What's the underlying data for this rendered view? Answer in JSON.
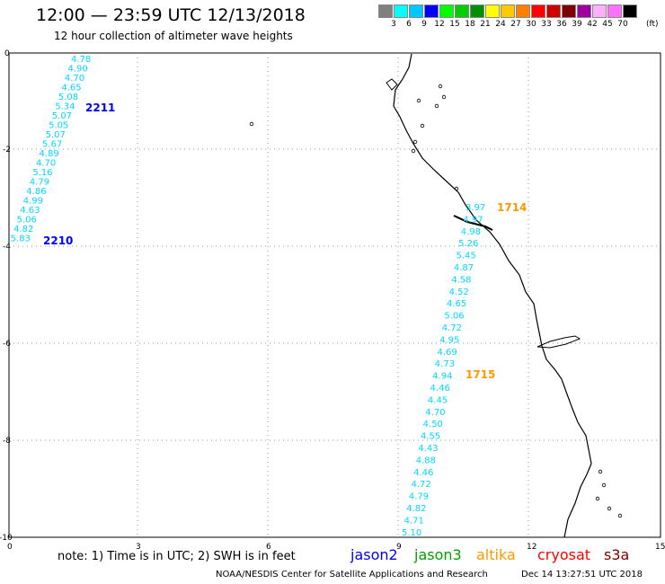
{
  "header": {
    "title": "12:00 — 23:59 UTC 12/13/2018",
    "subtitle": "12 hour collection of altimeter wave heights"
  },
  "color_scale": {
    "unit": "(ft)",
    "colors": [
      "#808080",
      "#00ffff",
      "#00c8ff",
      "#0000ff",
      "#00ff00",
      "#00d000",
      "#009000",
      "#ffff00",
      "#ffc800",
      "#ff8000",
      "#ff0000",
      "#d00000",
      "#800000",
      "#a000a0",
      "#ffb0ff",
      "#ff70ff",
      "#000000"
    ],
    "labels": [
      "3",
      "6",
      "9",
      "12",
      "15",
      "18",
      "21",
      "24",
      "27",
      "30",
      "33",
      "36",
      "39",
      "42",
      "45",
      "70"
    ]
  },
  "axes": {
    "x_ticks": [
      "0",
      "3",
      "6",
      "9",
      "12",
      "15"
    ],
    "y_ticks": [
      "0",
      "-2",
      "-4",
      "-6",
      "-8",
      "-10"
    ]
  },
  "tracks": [
    {
      "name": "2211",
      "satellite": "jason2",
      "color": "#00d8ff",
      "label_color": "#0000ff",
      "values": [
        "4.78",
        "4.90",
        "4.70",
        "4.65",
        "5.08",
        "5.34",
        "5.07",
        "5.05",
        "5.07",
        "5.67",
        "4.89",
        "4.70",
        "5.16",
        "4.79",
        "4.86",
        "4.99",
        "4.63",
        "5.06",
        "4.82",
        "5.83"
      ]
    },
    {
      "name": "2210",
      "satellite": "jason2",
      "label_color": "#0000ff"
    },
    {
      "name": "1714",
      "satellite": "altika",
      "color": "#00d8ff",
      "label_color": "#ff9900",
      "values": [
        "3.97",
        "4.97",
        "4.98",
        "5.26",
        "5.45",
        "4.87",
        "4.58",
        "4.52",
        "4.65",
        "5.06",
        "4.72",
        "4.95",
        "4.69",
        "4.73",
        "4.94",
        "4.46",
        "4.45",
        "4.70",
        "4.50",
        "4.55",
        "4.43",
        "4.88",
        "4.46",
        "4.72",
        "4.79",
        "4.82",
        "4.71",
        "5.10"
      ]
    },
    {
      "name": "1715",
      "satellite": "altika",
      "label_color": "#ff9900"
    }
  ],
  "legend": {
    "note": "note: 1) Time is in UTC; 2) SWH is in feet",
    "satellites": [
      {
        "name": "jason2",
        "color": "#0000ff"
      },
      {
        "name": "jason3",
        "color": "#00a000"
      },
      {
        "name": "altika",
        "color": "#ff9900"
      },
      {
        "name": "cryosat",
        "color": "#ff0000"
      },
      {
        "name": "s3a",
        "color": "#800000"
      }
    ]
  },
  "footer": {
    "credit": "NOAA/NESDIS Center for Satellite Applications and Research",
    "timestamp": "Dec 14 13:27:51 UTC 2018"
  }
}
